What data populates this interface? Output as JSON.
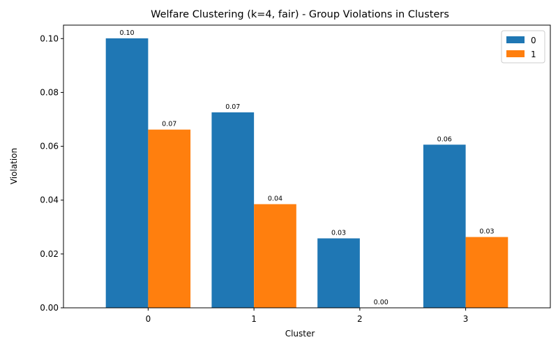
{
  "chart_data": {
    "type": "bar",
    "title": "Welfare Clustering (k=4, fair) - Group Violations in Clusters",
    "xlabel": "Cluster",
    "ylabel": "Violation",
    "categories": [
      "0",
      "1",
      "2",
      "3"
    ],
    "series": [
      {
        "name": "0",
        "color": "#1f77b4",
        "values": [
          0.1001,
          0.0726,
          0.0258,
          0.0606
        ],
        "labels": [
          "0.10",
          "0.07",
          "0.03",
          "0.06"
        ]
      },
      {
        "name": "1",
        "color": "#ff7f0e",
        "values": [
          0.0662,
          0.0385,
          0.0,
          0.0263
        ],
        "labels": [
          "0.07",
          "0.04",
          "0.00",
          "0.03"
        ]
      }
    ],
    "ylim": [
      0,
      0.105
    ],
    "yticks": [
      0.0,
      0.02,
      0.04,
      0.06,
      0.08,
      0.1
    ],
    "ytick_labels": [
      "0.00",
      "0.02",
      "0.04",
      "0.06",
      "0.08",
      "0.10"
    ],
    "grid": false,
    "legend_position": "top-right"
  }
}
